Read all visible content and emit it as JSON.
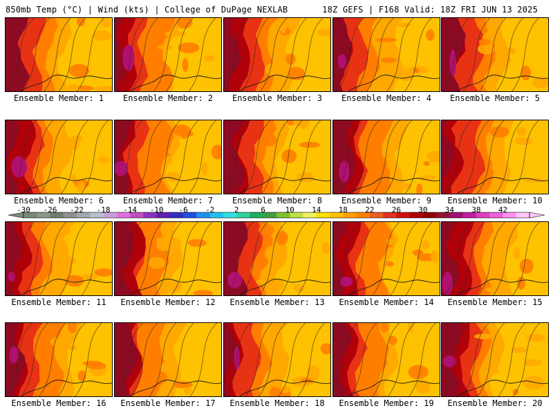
{
  "header": {
    "left_title": "850mb Temp (°C) | Wind (kts) | College of DuPage NEXLAB",
    "right_title": "18Z GEFS | F168 Valid: 18Z FRI JUN 13 2025"
  },
  "members": [
    {
      "label": "Ensemble Member: 1"
    },
    {
      "label": "Ensemble Member: 2"
    },
    {
      "label": "Ensemble Member: 3"
    },
    {
      "label": "Ensemble Member: 4"
    },
    {
      "label": "Ensemble Member: 5"
    },
    {
      "label": "Ensemble Member: 6"
    },
    {
      "label": "Ensemble Member: 7"
    },
    {
      "label": "Ensemble Member: 8"
    },
    {
      "label": "Ensemble Member: 9"
    },
    {
      "label": "Ensemble Member: 10"
    },
    {
      "label": "Ensemble Member: 11"
    },
    {
      "label": "Ensemble Member: 12"
    },
    {
      "label": "Ensemble Member: 13"
    },
    {
      "label": "Ensemble Member: 14"
    },
    {
      "label": "Ensemble Member: 15"
    },
    {
      "label": "Ensemble Member: 16"
    },
    {
      "label": "Ensemble Member: 17"
    },
    {
      "label": "Ensemble Member: 18"
    },
    {
      "label": "Ensemble Member: 19"
    },
    {
      "label": "Ensemble Member: 20"
    }
  ],
  "colorbar": {
    "labels": [
      "-30",
      "-26",
      "-22",
      "-18",
      "-14",
      "-10",
      "-6",
      "-2",
      "2",
      "6",
      "10",
      "14",
      "18",
      "22",
      "26",
      "30",
      "34",
      "38",
      "42"
    ],
    "colors": [
      "#7a8a7a",
      "#8a9a8a",
      "#6e7e72",
      "#909090",
      "#a0a8b0",
      "#b8c0d0",
      "#c8a0d8",
      "#e070e0",
      "#c050c0",
      "#9030c0",
      "#6020b0",
      "#3030c0",
      "#2050e0",
      "#2090f0",
      "#20c0f0",
      "#30e0e0",
      "#30d0a0",
      "#20b060",
      "#40a040",
      "#80c030",
      "#c0e040",
      "#f0f060",
      "#ffe000",
      "#ffc000",
      "#ffa000",
      "#ff8000",
      "#f06020",
      "#e03020",
      "#d01010",
      "#b00000",
      "#900000",
      "#901030",
      "#a01070",
      "#c020a0",
      "#e040c0",
      "#f060e0",
      "#ff90f0",
      "#ffc8ff"
    ]
  },
  "map_colors": {
    "t14_18": "#ffc200",
    "t18_22": "#ffa800",
    "t22_26": "#ff7e00",
    "t26_30": "#e83214",
    "t30_34": "#b0000a",
    "t34_38": "#8c0a22",
    "t38_42": "#b01070"
  }
}
